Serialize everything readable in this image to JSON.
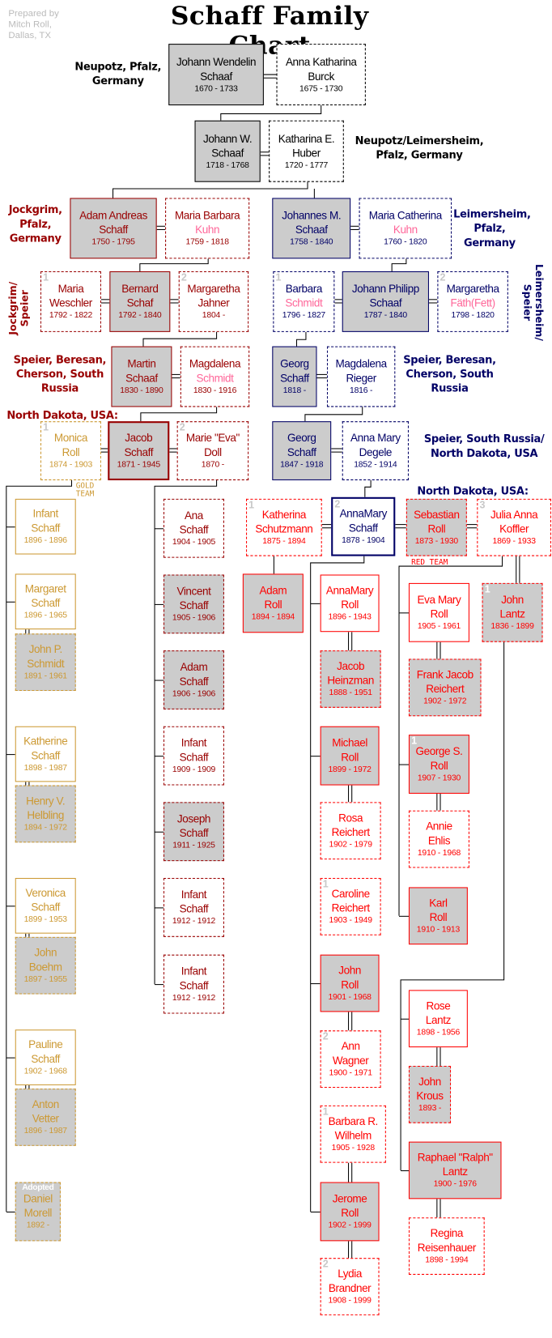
{
  "title": "Schaff Family Chart",
  "prepared_by": [
    "Prepared by",
    "Mitch Roll,",
    "Dallas, TX"
  ],
  "colors": {
    "dark_red": "#990000",
    "navy": "#000066",
    "red": "#ff0000",
    "gold": "#cc9933",
    "pink": "#ff6699",
    "box_fill": "#cccccc"
  },
  "places": {
    "gen1": "Neupotz, Pfalz, Germany",
    "gen2": "Neupotz/Leimersheim, Pfalz, Germany",
    "gen3_left": "Jockgrim, Pfalz, Germany",
    "gen3_right": "Leimersheim, Pfalz, Germany",
    "gen4_left": "Jockgrim/ Speier",
    "gen4_right": "Leimersheim/ Speier",
    "gen5_left": "Speier, Beresan, Cherson, South Russia",
    "gen5_right": "Speier, Beresan, Cherson, South Russia",
    "gen6_left": "North Dakota, USA:",
    "gen6_right": "Speier, South Russia/ North Dakota, USA",
    "gen7_right": "North Dakota, USA:"
  },
  "teams": {
    "gold": "GOLD TEAM",
    "red": "RED TEAM"
  },
  "people": {
    "jwendelin": {
      "first": "Johann Wendelin",
      "last": "Schaaf",
      "dates": "1670 - 1733"
    },
    "akburck": {
      "first": "Anna Katharina",
      "last": "Burck",
      "dates": "1675 - 1730"
    },
    "jwschaaf": {
      "first": "Johann W.",
      "last": "Schaaf",
      "dates": "1718 - 1768"
    },
    "kehuber": {
      "first": "Katharina E.",
      "last": "Huber",
      "dates": "1720 - 1777"
    },
    "adamandreas": {
      "first": "Adam Andreas",
      "last": "Schaff",
      "dates": "1750 - 1795"
    },
    "mbkuhn": {
      "first": "Maria Barbara",
      "last": "Kuhn",
      "dates": "1759 - 1818"
    },
    "johannesm": {
      "first": "Johannes M.",
      "last": "Schaaf",
      "dates": "1758 - 1840"
    },
    "mckuhn": {
      "first": "Maria Catherina",
      "last": "Kuhn",
      "dates": "1760 - 1820"
    },
    "mweschler": {
      "first": "Maria",
      "last": "Weschler",
      "dates": "1792 - 1822",
      "badge": "1"
    },
    "bernard": {
      "first": "Bernard",
      "last": "Schaf",
      "dates": "1792 - 1840"
    },
    "mjahner": {
      "first": "Margaretha",
      "last": "Jahner",
      "dates": "1804 -",
      "badge": "2"
    },
    "bschmidt": {
      "first": "Barbara",
      "last": "Schmidt",
      "dates": "1796 - 1827",
      "badge": "1"
    },
    "jphilipp": {
      "first": "Johann Philipp",
      "last": "Schaaf",
      "dates": "1787 - 1840"
    },
    "mfaeth": {
      "first": "Margaretha",
      "last": "Fäth(Fett)",
      "dates": "1798 - 1820",
      "badge": "2"
    },
    "martin": {
      "first": "Martin",
      "last": "Schaaf",
      "dates": "1830 - 1890"
    },
    "mschmidt": {
      "first": "Magdalena",
      "last": "Schmidt",
      "dates": "1830 - 1916"
    },
    "georg1": {
      "first": "Georg",
      "last": "Schaff",
      "dates": "1818 -"
    },
    "mrieger": {
      "first": "Magdalena",
      "last": "Rieger",
      "dates": "1816 -"
    },
    "monica": {
      "first": "Monica",
      "last": "Roll",
      "dates": "1874 - 1903",
      "badge": "1"
    },
    "jacob": {
      "first": "Jacob",
      "last": "Schaff",
      "dates": "1871 - 1945"
    },
    "marieeva": {
      "first": "Marie \"Eva\"",
      "last": "Doll",
      "dates": "1870 -",
      "badge": "2"
    },
    "georg2": {
      "first": "Georg",
      "last": "Schaff",
      "dates": "1847 - 1918"
    },
    "amdegele": {
      "first": "Anna Mary",
      "last": "Degele",
      "dates": "1852 - 1914"
    },
    "infant1": {
      "first": "Infant",
      "last": "Schaff",
      "dates": "1896 - 1896"
    },
    "margaret": {
      "first": "Margaret",
      "last": "Schaff",
      "dates": "1896 - 1965"
    },
    "johnp": {
      "first": "John P.",
      "last": "Schmidt",
      "dates": "1891 - 1961"
    },
    "katherine": {
      "first": "Katherine",
      "last": "Schaff",
      "dates": "1898 - 1987"
    },
    "henry": {
      "first": "Henry V.",
      "last": "Helbling",
      "dates": "1894 - 1972"
    },
    "veronica": {
      "first": "Veronica",
      "last": "Schaff",
      "dates": "1899 - 1953"
    },
    "boehm": {
      "first": "John",
      "last": "Boehm",
      "dates": "1897 - 1955"
    },
    "pauline": {
      "first": "Pauline",
      "last": "Schaff",
      "dates": "1902 - 1968"
    },
    "vetter": {
      "first": "Anton",
      "last": "Vetter",
      "dates": "1896 - 1987"
    },
    "morell": {
      "first": "Daniel",
      "last": "Morell",
      "dates": "1892 -",
      "badge": "Adopted"
    },
    "ana": {
      "first": "Ana",
      "last": "Schaff",
      "dates": "1904 - 1905"
    },
    "vincent": {
      "first": "Vincent",
      "last": "Schaff",
      "dates": "1905 - 1906"
    },
    "adams": {
      "first": "Adam",
      "last": "Schaff",
      "dates": "1906 - 1906"
    },
    "infant2": {
      "first": "Infant",
      "last": "Schaff",
      "dates": "1909 - 1909"
    },
    "joseph": {
      "first": "Joseph",
      "last": "Schaff",
      "dates": "1911 - 1925"
    },
    "infant3": {
      "first": "Infant",
      "last": "Schaff",
      "dates": "1912 - 1912"
    },
    "infant4": {
      "first": "Infant",
      "last": "Schaff",
      "dates": "1912 - 1912"
    },
    "kschutz": {
      "first": "Katherina",
      "last": "Schutzmann",
      "dates": "1875 - 1894",
      "badge": "1"
    },
    "amschaff": {
      "first": "AnnaMary",
      "last": "Schaff",
      "dates": "1878 - 1904",
      "badge": "2"
    },
    "sebastian": {
      "first": "Sebastian",
      "last": "Roll",
      "dates": "1873 - 1930"
    },
    "julia": {
      "first": "Julia Anna",
      "last": "Koffler",
      "dates": "1869 - 1933",
      "badge": "3"
    },
    "adamroll": {
      "first": "Adam",
      "last": "Roll",
      "dates": "1894 - 1894"
    },
    "amroll": {
      "first": "AnnaMary",
      "last": "Roll",
      "dates": "1896 - 1943"
    },
    "heinzman": {
      "first": "Jacob",
      "last": "Heinzman",
      "dates": "1888 - 1951"
    },
    "michael": {
      "first": "Michael",
      "last": "Roll",
      "dates": "1899 - 1972"
    },
    "rosa": {
      "first": "Rosa",
      "last": "Reichert",
      "dates": "1902 - 1979"
    },
    "caroline": {
      "first": "Caroline",
      "last": "Reichert",
      "dates": "1903 - 1949",
      "badge": "1"
    },
    "johnroll": {
      "first": "John",
      "last": "Roll",
      "dates": "1901 - 1968"
    },
    "wagner": {
      "first": "Ann",
      "last": "Wagner",
      "dates": "1900 - 1971",
      "badge": "2"
    },
    "wilhelm": {
      "first": "Barbara R.",
      "last": "Wilhelm",
      "dates": "1905 - 1928",
      "badge": "1"
    },
    "jerome": {
      "first": "Jerome",
      "last": "Roll",
      "dates": "1902 - 1999"
    },
    "brandner": {
      "first": "Lydia",
      "last": "Brandner",
      "dates": "1908 - 1999",
      "badge": "2"
    },
    "lantz": {
      "first": "John",
      "last": "Lantz",
      "dates": "1836 - 1899",
      "badge": "1"
    },
    "eva": {
      "first": "Eva Mary",
      "last": "Roll",
      "dates": "1905 - 1961"
    },
    "frank": {
      "first": "Frank Jacob",
      "last": "Reichert",
      "dates": "1902 - 1972"
    },
    "george": {
      "first": "George S.",
      "last": "Roll",
      "dates": "1907 - 1930",
      "badge": "1"
    },
    "annie": {
      "first": "Annie",
      "last": "Ehlis",
      "dates": "1910 - 1968"
    },
    "karl": {
      "first": "Karl",
      "last": "Roll",
      "dates": "1910 - 1913"
    },
    "rose": {
      "first": "Rose",
      "last": "Lantz",
      "dates": "1898 - 1956"
    },
    "krous": {
      "first": "John",
      "last": "Krous",
      "dates": "1893 -"
    },
    "raphael": {
      "first": "Raphael \"Ralph\"",
      "last": "Lantz",
      "dates": "1900 - 1976"
    },
    "regina": {
      "first": "Regina",
      "last": "Reisenhauer",
      "dates": "1898 - 1994"
    }
  }
}
